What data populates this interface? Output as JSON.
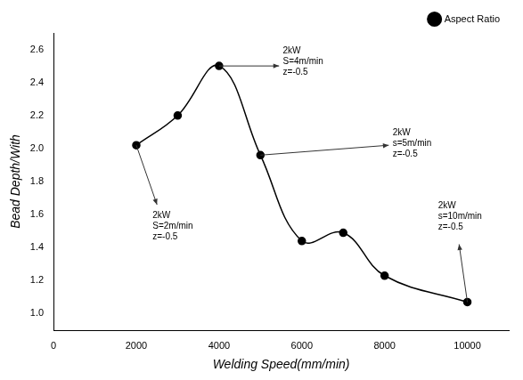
{
  "chart_data": {
    "type": "line",
    "x_label": "Welding Speed(mm/min)",
    "y_label": "Bead Depth/With",
    "x": [
      2000,
      3000,
      4000,
      5000,
      6000,
      7000,
      8000,
      10000
    ],
    "series": [
      {
        "name": "Aspect Ratio",
        "color": "#000000",
        "marker": "circle",
        "line_style": "solid",
        "values": [
          2.02,
          2.2,
          2.5,
          1.96,
          1.44,
          1.49,
          1.23,
          1.07
        ]
      }
    ],
    "xlim": [
      0,
      11000
    ],
    "xticks": [
      0,
      2000,
      4000,
      6000,
      8000,
      10000
    ],
    "ylim": [
      0.9,
      2.7
    ],
    "yticks": [
      {
        "value": 1,
        "label": "1.0"
      },
      1.2,
      1.4,
      1.6,
      1.8,
      {
        "value": 2,
        "label": "2.0"
      },
      2.2,
      2.4,
      2.6
    ],
    "grid": false,
    "legend": "top right",
    "annotations": [
      {
        "text": [
          "2kW",
          "S=2m/min",
          "z=-0.5"
        ]
      },
      {
        "text": [
          "2kW",
          "S=4m/min",
          "z=-0.5"
        ]
      },
      {
        "text": [
          "2kW",
          "s=5m/min",
          "z=-0.5"
        ]
      },
      {
        "text": [
          "2kW",
          "s=10m/min",
          "z=-0.5"
        ]
      }
    ]
  }
}
